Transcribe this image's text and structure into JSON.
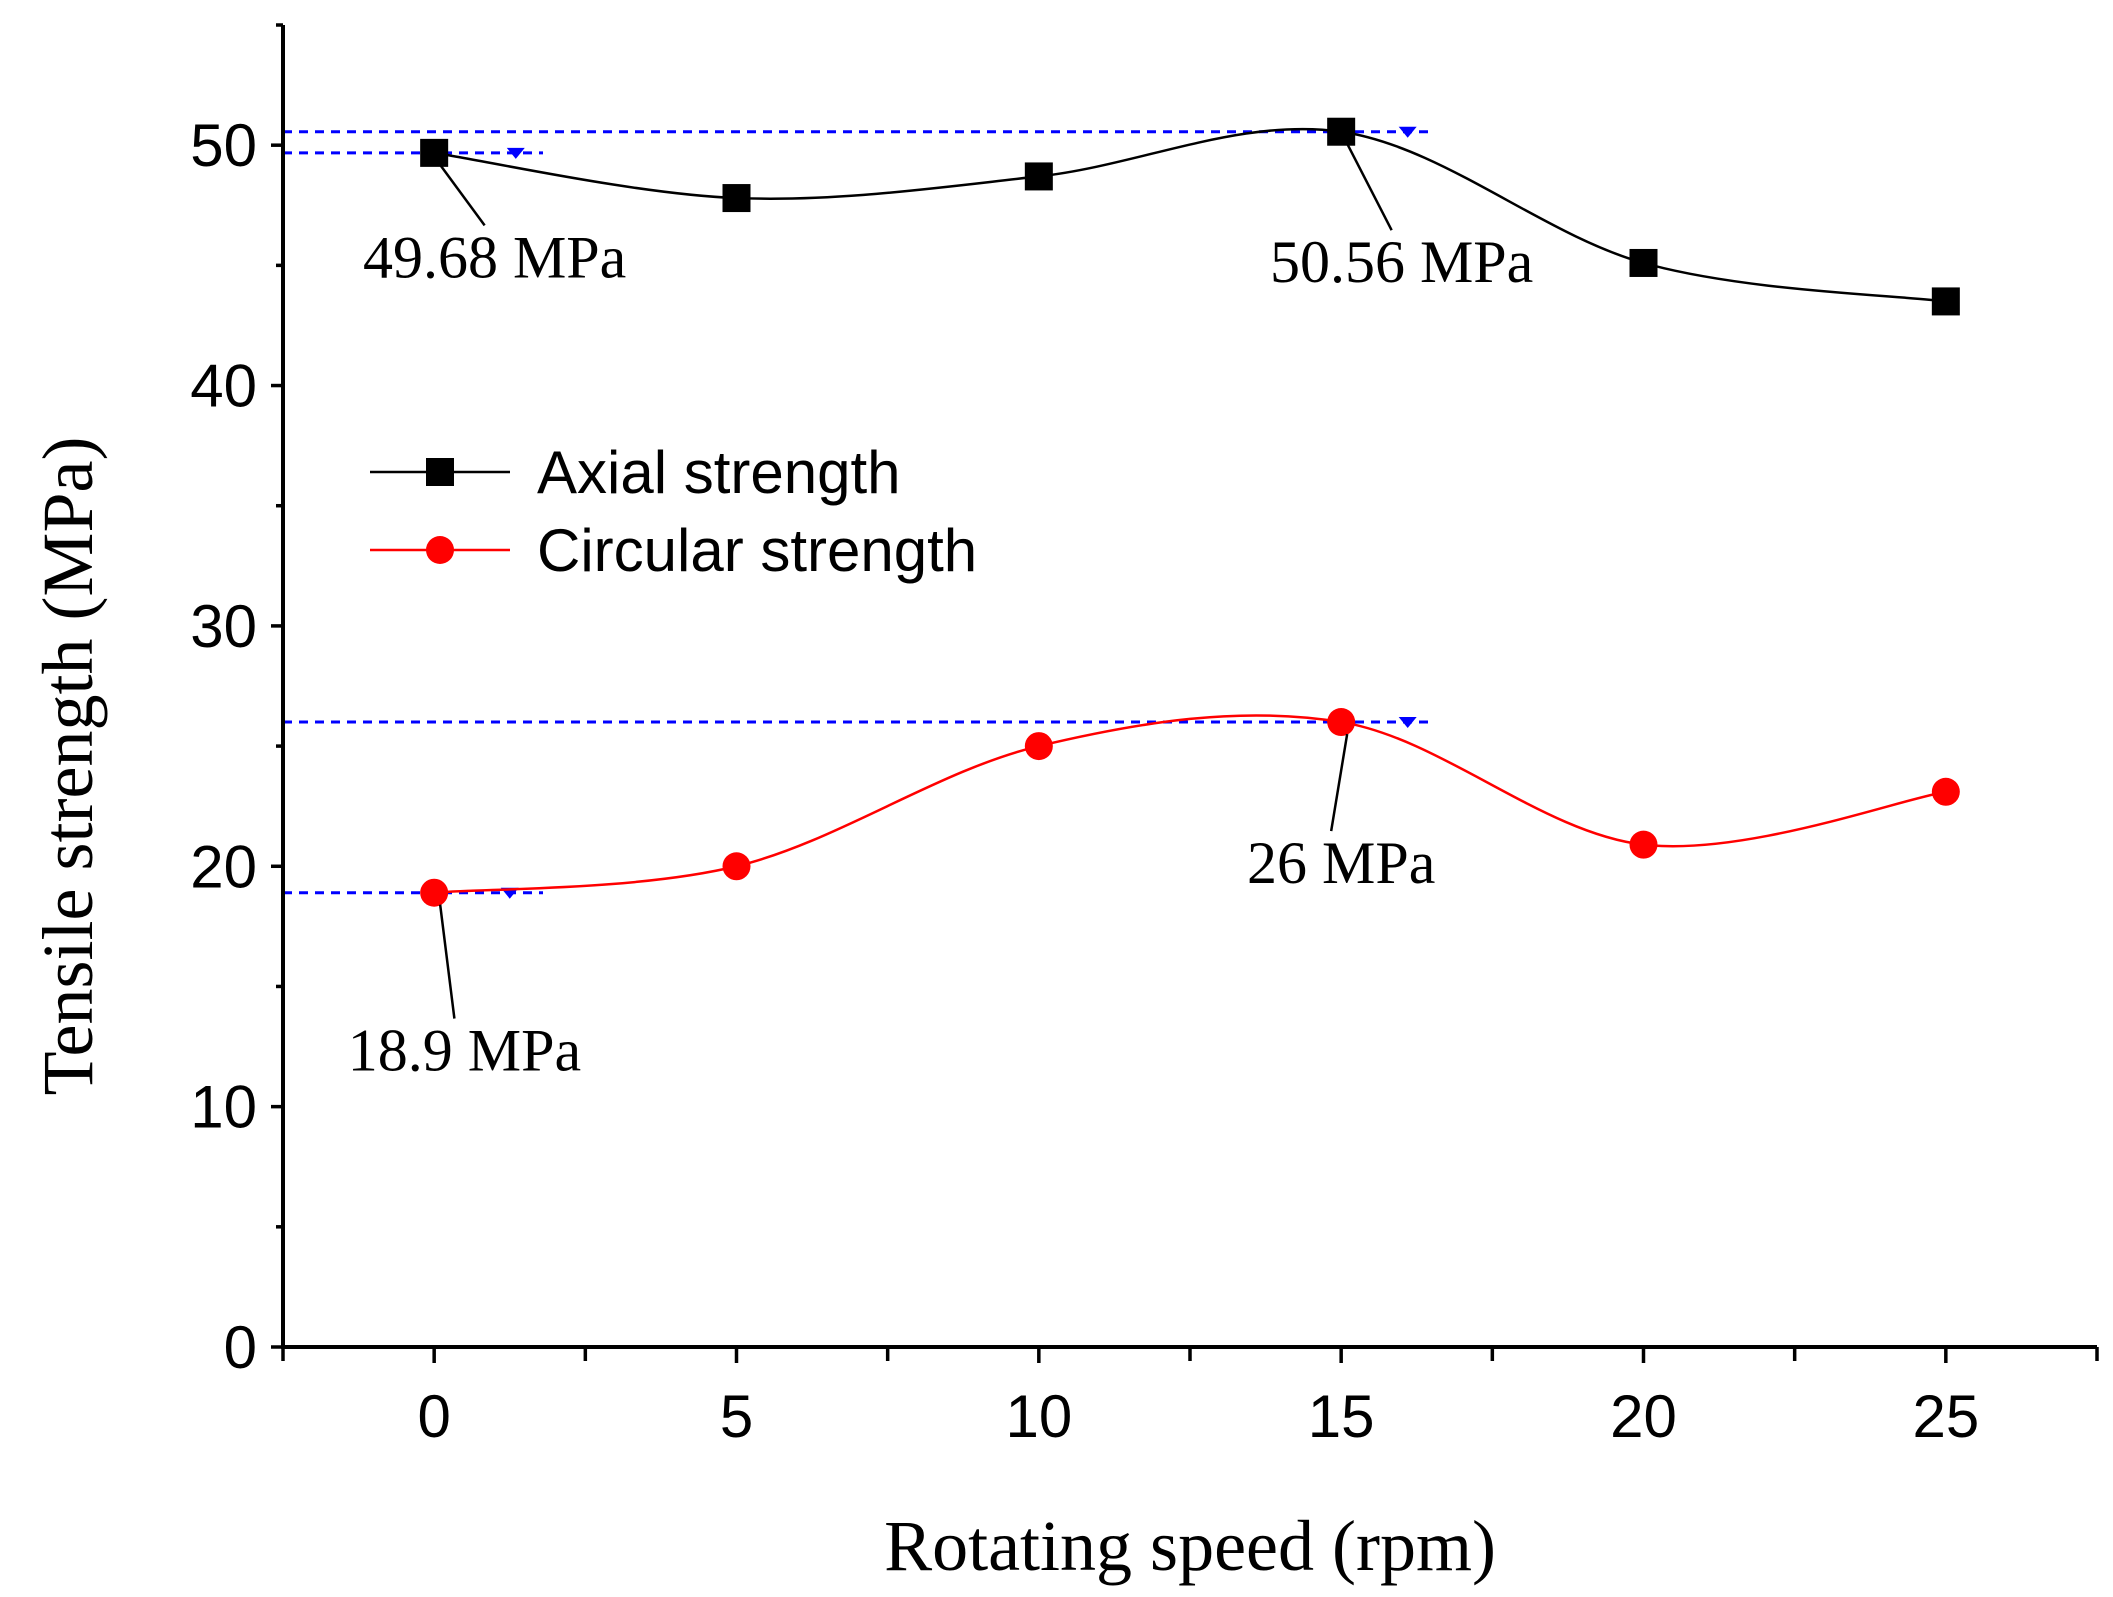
{
  "chart_data": {
    "type": "line",
    "title": "",
    "xlabel": "Rotating speed (rpm)",
    "ylabel": "Tensile strength (MPa)",
    "xlim": [
      -2.5,
      27.5
    ],
    "ylim": [
      0,
      55
    ],
    "x_ticks": [
      0,
      5,
      10,
      15,
      20,
      25
    ],
    "y_ticks": [
      0,
      10,
      20,
      30,
      40,
      50
    ],
    "grid": false,
    "legend_position": "upper-left",
    "colors": {
      "axial": "#000000",
      "circular": "#ff0000",
      "reference": "#0000ff"
    },
    "series": [
      {
        "name": "Axial strength",
        "marker": "square",
        "color": "#000000",
        "x": [
          0,
          5,
          10,
          15,
          20,
          25
        ],
        "values": [
          49.68,
          47.8,
          48.7,
          50.56,
          45.1,
          43.5
        ]
      },
      {
        "name": "Circular strength",
        "marker": "circle",
        "color": "#ff0000",
        "x": [
          0,
          5,
          10,
          15,
          20,
          25
        ],
        "values": [
          18.9,
          20.0,
          25.0,
          26.0,
          20.9,
          23.1
        ]
      }
    ],
    "reference_lines": [
      {
        "y": 50.56,
        "x_from": -2.5,
        "x_to": 16.5,
        "marker_x": 16.1
      },
      {
        "y": 49.68,
        "x_from": -2.5,
        "x_to": 1.8,
        "marker_x": 1.35
      },
      {
        "y": 26.0,
        "x_from": -2.5,
        "x_to": 16.5,
        "marker_x": 16.1
      },
      {
        "y": 18.9,
        "x_from": -2.5,
        "x_to": 1.8,
        "marker_x": 1.25
      }
    ],
    "annotations": [
      {
        "label": "49.68 MPa",
        "point_x": 0,
        "point_y": 49.68,
        "label_x": 1.0,
        "label_y": 44.5
      },
      {
        "label": "50.56 MPa",
        "point_x": 15,
        "point_y": 50.56,
        "label_x": 16.0,
        "label_y": 44.3
      },
      {
        "label": "26 MPa",
        "point_x": 15,
        "point_y": 26.0,
        "label_x": 15.0,
        "label_y": 19.3
      },
      {
        "label": "18.9 MPa",
        "point_x": 0,
        "point_y": 18.9,
        "label_x": 0.5,
        "label_y": 11.5
      }
    ]
  }
}
